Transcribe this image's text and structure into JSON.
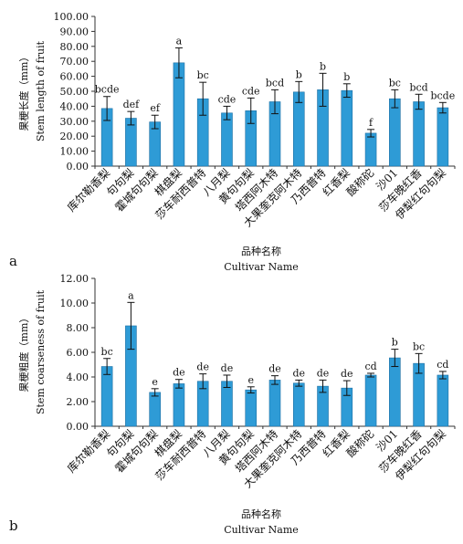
{
  "chart_data": [
    {
      "type": "bar",
      "panel": "a",
      "categories": [
        "库尔勒香梨",
        "句句梨",
        "霍城句句梨",
        "棋盘梨",
        "莎车耐西普特",
        "八月梨",
        "黄句句梨",
        "塔西阿木特",
        "大果奎克阿木特",
        "乃西普特",
        "红香梨",
        "酸称砣",
        "沙01",
        "莎车晚红香",
        "伊犁红句句梨"
      ],
      "values": [
        38.5,
        32.0,
        29.5,
        69.0,
        45.0,
        35.5,
        37.0,
        43.0,
        49.5,
        51.0,
        50.5,
        22.0,
        45.0,
        43.0,
        39.0
      ],
      "errors": [
        8.0,
        4.5,
        4.5,
        10.0,
        11.0,
        4.5,
        8.5,
        8.0,
        7.0,
        11.0,
        4.5,
        2.5,
        6.0,
        5.0,
        3.5
      ],
      "significance": [
        "bcde",
        "def",
        "ef",
        "a",
        "bc",
        "cde",
        "cde",
        "bcd",
        "b",
        "b",
        "b",
        "f",
        "bc",
        "bcd",
        "bcde"
      ],
      "ylabel": "果梗长度（mm）",
      "ylabel_en": "Stem length of fruit",
      "xlabel": "品种名称",
      "xlabel_en": "Cultivar Name",
      "ylim": [
        0,
        100
      ],
      "yticks": [
        "0.00",
        "10.00",
        "20.00",
        "30.00",
        "40.00",
        "50.00",
        "60.00",
        "70.00",
        "80.00",
        "90.00",
        "100.00"
      ],
      "bar_color": "#2e9bd6",
      "grid": false
    },
    {
      "type": "bar",
      "panel": "b",
      "categories": [
        "库尔勒香梨",
        "句句梨",
        "霍城句句梨",
        "棋盘梨",
        "莎车耐西普特",
        "八月梨",
        "黄句句梨",
        "塔西阿木特",
        "大果奎克阿木特",
        "乃西普特",
        "红香梨",
        "酸称砣",
        "沙01",
        "莎车晚红香",
        "伊犁红句句梨"
      ],
      "values": [
        4.85,
        8.15,
        2.75,
        3.45,
        3.65,
        3.65,
        2.95,
        3.75,
        3.5,
        3.25,
        3.1,
        4.15,
        5.55,
        5.1,
        4.15
      ],
      "errors": [
        0.65,
        1.9,
        0.3,
        0.35,
        0.6,
        0.5,
        0.25,
        0.35,
        0.25,
        0.5,
        0.6,
        0.15,
        0.7,
        0.8,
        0.3
      ],
      "significance": [
        "bc",
        "a",
        "e",
        "de",
        "de",
        "de",
        "e",
        "de",
        "de",
        "de",
        "de",
        "cd",
        "b",
        "bc",
        "cd"
      ],
      "ylabel": "果梗粗度（mm）",
      "ylabel_en": "Stem coarseness of fruit",
      "xlabel": "品种名称",
      "xlabel_en": "Cultivar Name",
      "ylim": [
        0,
        12
      ],
      "yticks": [
        "0.00",
        "2.00",
        "4.00",
        "6.00",
        "8.00",
        "10.00",
        "12.00"
      ],
      "bar_color": "#2e9bd6",
      "grid": false
    }
  ]
}
